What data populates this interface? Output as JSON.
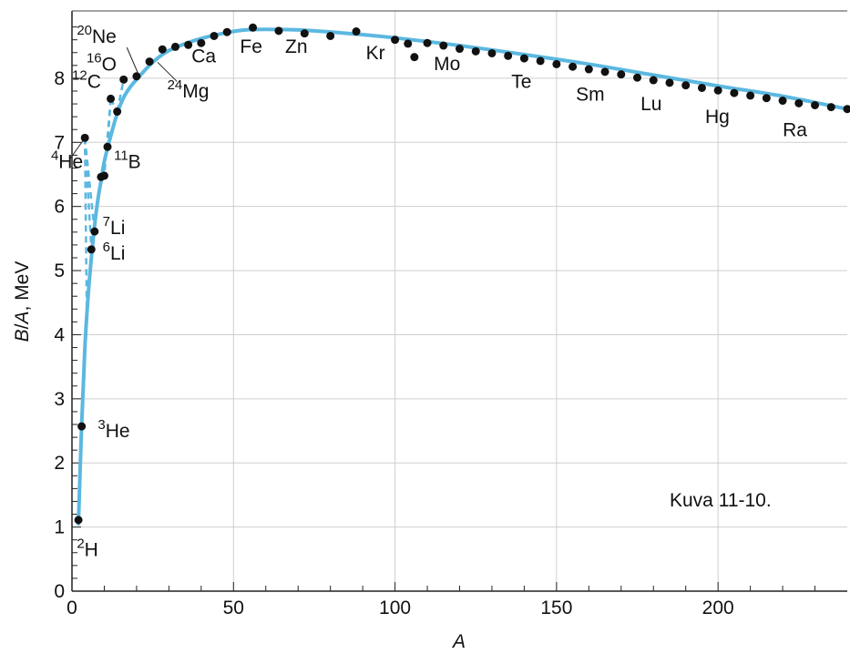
{
  "chart_data": {
    "type": "scatter",
    "xlabel": "A",
    "ylabel_parts": [
      "B",
      "/",
      "A",
      ", MeV"
    ],
    "xlim": [
      0,
      240
    ],
    "ylim": [
      0,
      9
    ],
    "x_ticks": [
      "0",
      "50",
      "100",
      "150",
      "200"
    ],
    "x_tick_values": [
      0,
      50,
      100,
      150,
      200
    ],
    "y_ticks": [
      "0",
      "1",
      "2",
      "3",
      "4",
      "5",
      "6",
      "7",
      "8"
    ],
    "y_tick_values": [
      0,
      1,
      2,
      3,
      4,
      5,
      6,
      7,
      8
    ],
    "grid": true,
    "curve_color": "#5bb8e0",
    "caption": "Kuva 11-10.",
    "points": [
      {
        "x": 2,
        "y": 1.11
      },
      {
        "x": 3,
        "y": 2.57
      },
      {
        "x": 4,
        "y": 7.07
      },
      {
        "x": 6,
        "y": 5.33
      },
      {
        "x": 7,
        "y": 5.61
      },
      {
        "x": 9,
        "y": 6.46
      },
      {
        "x": 10,
        "y": 6.48
      },
      {
        "x": 11,
        "y": 6.93
      },
      {
        "x": 12,
        "y": 7.68
      },
      {
        "x": 14,
        "y": 7.48
      },
      {
        "x": 16,
        "y": 7.98
      },
      {
        "x": 20,
        "y": 8.03
      },
      {
        "x": 24,
        "y": 8.26
      },
      {
        "x": 28,
        "y": 8.45
      },
      {
        "x": 32,
        "y": 8.49
      },
      {
        "x": 36,
        "y": 8.52
      },
      {
        "x": 40,
        "y": 8.55
      },
      {
        "x": 44,
        "y": 8.66
      },
      {
        "x": 48,
        "y": 8.72
      },
      {
        "x": 56,
        "y": 8.79
      },
      {
        "x": 64,
        "y": 8.74
      },
      {
        "x": 72,
        "y": 8.7
      },
      {
        "x": 80,
        "y": 8.66
      },
      {
        "x": 88,
        "y": 8.73
      },
      {
        "x": 100,
        "y": 8.6
      },
      {
        "x": 104,
        "y": 8.54
      },
      {
        "x": 106,
        "y": 8.33
      },
      {
        "x": 110,
        "y": 8.55
      },
      {
        "x": 115,
        "y": 8.51
      },
      {
        "x": 120,
        "y": 8.46
      },
      {
        "x": 125,
        "y": 8.42
      },
      {
        "x": 130,
        "y": 8.39
      },
      {
        "x": 135,
        "y": 8.35
      },
      {
        "x": 140,
        "y": 8.31
      },
      {
        "x": 145,
        "y": 8.27
      },
      {
        "x": 150,
        "y": 8.22
      },
      {
        "x": 155,
        "y": 8.18
      },
      {
        "x": 160,
        "y": 8.14
      },
      {
        "x": 165,
        "y": 8.1
      },
      {
        "x": 170,
        "y": 8.06
      },
      {
        "x": 175,
        "y": 8.01
      },
      {
        "x": 180,
        "y": 7.97
      },
      {
        "x": 185,
        "y": 7.93
      },
      {
        "x": 190,
        "y": 7.89
      },
      {
        "x": 195,
        "y": 7.85
      },
      {
        "x": 200,
        "y": 7.81
      },
      {
        "x": 205,
        "y": 7.77
      },
      {
        "x": 210,
        "y": 7.73
      },
      {
        "x": 215,
        "y": 7.69
      },
      {
        "x": 220,
        "y": 7.65
      },
      {
        "x": 225,
        "y": 7.61
      },
      {
        "x": 230,
        "y": 7.58
      },
      {
        "x": 235,
        "y": 7.55
      },
      {
        "x": 240,
        "y": 7.52
      }
    ],
    "curve": [
      [
        2,
        1.05
      ],
      [
        3,
        2.6
      ],
      [
        4,
        3.8
      ],
      [
        5,
        4.6
      ],
      [
        6,
        5.2
      ],
      [
        7,
        5.7
      ],
      [
        8,
        6.1
      ],
      [
        9,
        6.4
      ],
      [
        10,
        6.7
      ],
      [
        12,
        7.1
      ],
      [
        14,
        7.45
      ],
      [
        16,
        7.7
      ],
      [
        18,
        7.86
      ],
      [
        20,
        7.98
      ],
      [
        24,
        8.2
      ],
      [
        28,
        8.37
      ],
      [
        32,
        8.48
      ],
      [
        40,
        8.62
      ],
      [
        50,
        8.73
      ],
      [
        56,
        8.76
      ],
      [
        65,
        8.76
      ],
      [
        75,
        8.74
      ],
      [
        90,
        8.68
      ],
      [
        100,
        8.63
      ],
      [
        120,
        8.51
      ],
      [
        140,
        8.37
      ],
      [
        160,
        8.22
      ],
      [
        180,
        8.05
      ],
      [
        200,
        7.88
      ],
      [
        220,
        7.72
      ],
      [
        240,
        7.52
      ]
    ],
    "dashed_segments": [
      [
        [
          4,
          7.07
        ],
        [
          6,
          5.33
        ]
      ],
      [
        [
          4,
          7.07
        ],
        [
          7,
          5.61
        ]
      ],
      [
        [
          4,
          7.07
        ],
        [
          4.6,
          4.3
        ]
      ],
      [
        [
          12,
          7.68
        ],
        [
          10,
          6.48
        ]
      ],
      [
        [
          12,
          7.68
        ],
        [
          11,
          6.93
        ]
      ],
      [
        [
          12,
          7.68
        ],
        [
          14,
          7.48
        ]
      ],
      [
        [
          14,
          7.48
        ],
        [
          16,
          7.98
        ]
      ]
    ],
    "annotations": [
      {
        "name": "label-2H",
        "sup": "2",
        "base": "H",
        "x": 1.5,
        "y": 0.55
      },
      {
        "name": "label-3He",
        "sup": "3",
        "base": "He",
        "x": 8,
        "y": 2.4
      },
      {
        "name": "label-4He",
        "sup": "4",
        "base": "He",
        "x": -6.5,
        "y": 6.6
      },
      {
        "name": "label-6Li",
        "sup": "6",
        "base": "Li",
        "x": 9.5,
        "y": 5.17
      },
      {
        "name": "label-7Li",
        "sup": "7",
        "base": "Li",
        "x": 9.5,
        "y": 5.57
      },
      {
        "name": "label-11B",
        "sup": "11",
        "base": "B",
        "x": 13,
        "y": 6.6
      },
      {
        "name": "label-12C",
        "sup": "12",
        "base": "C",
        "x": 0,
        "y": 7.85
      },
      {
        "name": "label-16O",
        "sup": "16",
        "base": "O",
        "x": 4.5,
        "y": 8.12
      },
      {
        "name": "label-20Ne",
        "sup": "20",
        "base": "Ne",
        "x": 1.5,
        "y": 8.55
      },
      {
        "name": "label-24Mg",
        "sup": "24",
        "base": "Mg",
        "x": 29.5,
        "y": 7.7
      },
      {
        "name": "label-Ca",
        "sup": "",
        "base": "Ca",
        "x": 37,
        "y": 8.25
      },
      {
        "name": "label-Fe",
        "sup": "",
        "base": "Fe",
        "x": 52,
        "y": 8.4
      },
      {
        "name": "label-Zn",
        "sup": "",
        "base": "Zn",
        "x": 66,
        "y": 8.4
      },
      {
        "name": "label-Kr",
        "sup": "",
        "base": "Kr",
        "x": 91,
        "y": 8.3
      },
      {
        "name": "label-Mo",
        "sup": "",
        "base": "Mo",
        "x": 112,
        "y": 8.13
      },
      {
        "name": "label-Te",
        "sup": "",
        "base": "Te",
        "x": 136,
        "y": 7.85
      },
      {
        "name": "label-Sm",
        "sup": "",
        "base": "Sm",
        "x": 156,
        "y": 7.65
      },
      {
        "name": "label-Lu",
        "sup": "",
        "base": "Lu",
        "x": 176,
        "y": 7.5
      },
      {
        "name": "label-Hg",
        "sup": "",
        "base": "Hg",
        "x": 196,
        "y": 7.3
      },
      {
        "name": "label-Ra",
        "sup": "",
        "base": "Ra",
        "x": 220,
        "y": 7.1
      }
    ],
    "leader_lines": [
      {
        "name": "leader-4He",
        "from": [
          -0.5,
          6.75
        ],
        "to": [
          4,
          7.07
        ]
      },
      {
        "name": "leader-20Ne",
        "from": [
          17,
          8.48
        ],
        "to": [
          20.5,
          8.07
        ]
      },
      {
        "name": "leader-24Mg",
        "from": [
          32.5,
          7.95
        ],
        "to": [
          26.5,
          8.25
        ]
      }
    ]
  }
}
